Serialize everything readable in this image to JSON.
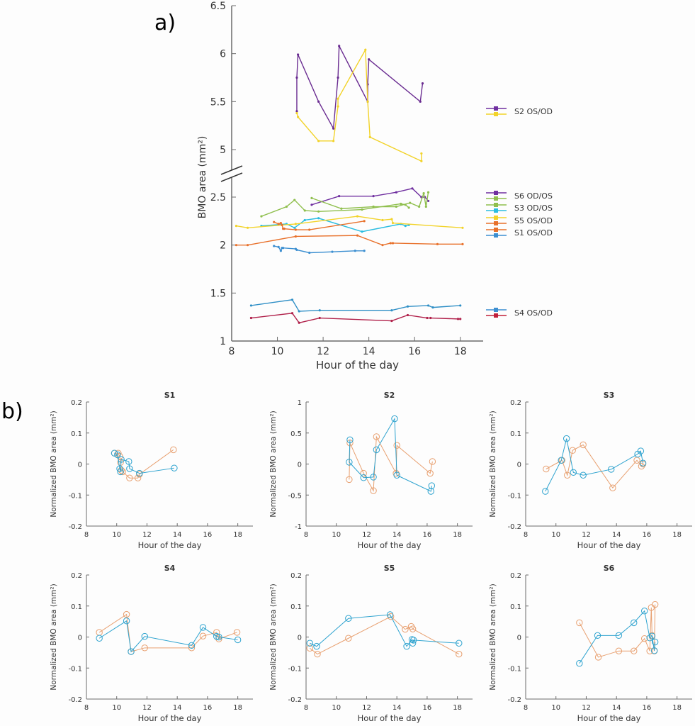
{
  "panel_labels": {
    "a": "a)",
    "b": "b)"
  },
  "chart_data": [
    {
      "id": "a",
      "type": "line",
      "title": "",
      "xlabel": "Hour of the day",
      "ylabel": "BMO area (mm²)",
      "xlim": [
        8,
        19
      ],
      "xticks": [
        8,
        10,
        12,
        14,
        16,
        18
      ],
      "ylim_lower": [
        1,
        2.75
      ],
      "ylim_upper": [
        4.8,
        6.5
      ],
      "yticks_lower": [
        1,
        1.5,
        2,
        2.5
      ],
      "yticks_upper": [
        5,
        5.5,
        6,
        6.5
      ],
      "axis_break": true,
      "legend_placement": "right",
      "legend": [
        {
          "label": "S2 OS/OD",
          "colors": [
            "#7030a0",
            "#f2d32a"
          ]
        },
        {
          "label": "S6 OD/OS",
          "colors": [
            "#7030a0",
            "#8fbf4d"
          ]
        },
        {
          "label": "S3 OD/OS",
          "colors": [
            "#8fbf4d",
            "#2bbde0"
          ]
        },
        {
          "label": "S5 OS/OD",
          "colors": [
            "#f2d32a",
            "#e8702a"
          ]
        },
        {
          "label": "S1 OS/OD",
          "colors": [
            "#e8702a",
            "#3c8fd1"
          ]
        },
        {
          "label": "S4 OS/OD",
          "colors": [
            "#3c8fd1",
            "#c0203a"
          ]
        }
      ],
      "series": [
        {
          "name": "S2 OS",
          "color": "#6a2c91",
          "x": [
            10.85,
            10.85,
            10.9,
            11.8,
            12.45,
            12.65,
            12.7,
            13.95,
            13.95,
            14.0,
            16.25,
            16.35
          ],
          "y": [
            5.4,
            5.75,
            5.99,
            5.5,
            5.22,
            5.75,
            6.08,
            5.5,
            5.68,
            5.94,
            5.5,
            5.69
          ]
        },
        {
          "name": "S2 OD",
          "color": "#f2d32a",
          "x": [
            10.85,
            10.9,
            11.8,
            12.45,
            12.65,
            12.65,
            13.85,
            13.95,
            14.05,
            16.3,
            16.3
          ],
          "y": [
            5.38,
            5.34,
            5.09,
            5.09,
            5.45,
            5.53,
            6.04,
            5.5,
            5.13,
            4.88,
            4.96
          ]
        },
        {
          "name": "S6 OD",
          "color": "#7030a0",
          "x": [
            11.5,
            12.7,
            14.2,
            15.2,
            15.9,
            16.3,
            16.45,
            16.6
          ],
          "y": [
            2.42,
            2.51,
            2.51,
            2.55,
            2.59,
            2.5,
            2.5,
            2.46
          ]
        },
        {
          "name": "S6 OS",
          "color": "#8fbf4d",
          "x": [
            11.5,
            12.8,
            14.2,
            15.2,
            15.8,
            16.2,
            16.4,
            16.5,
            16.6
          ],
          "y": [
            2.49,
            2.38,
            2.4,
            2.4,
            2.44,
            2.4,
            2.54,
            2.4,
            2.55
          ]
        },
        {
          "name": "S3 OD",
          "color": "#8fbf4d",
          "x": [
            9.3,
            10.4,
            10.75,
            11.2,
            11.8,
            13.7,
            15.4,
            15.6,
            15.75
          ],
          "y": [
            2.3,
            2.4,
            2.47,
            2.36,
            2.35,
            2.37,
            2.43,
            2.42,
            2.39
          ]
        },
        {
          "name": "S3 OS",
          "color": "#2bbde0",
          "x": [
            9.3,
            10.4,
            10.75,
            11.2,
            11.8,
            13.7,
            15.4,
            15.6,
            15.75
          ],
          "y": [
            2.2,
            2.22,
            2.18,
            2.26,
            2.28,
            2.14,
            2.22,
            2.2,
            2.21
          ]
        },
        {
          "name": "S5 OS",
          "color": "#f2d32a",
          "x": [
            8.2,
            8.7,
            10.8,
            13.5,
            14.6,
            15.0,
            15.05,
            18.1
          ],
          "y": [
            2.2,
            2.18,
            2.22,
            2.3,
            2.26,
            2.27,
            2.23,
            2.18
          ]
        },
        {
          "name": "S5 OD",
          "color": "#e8702a",
          "x": [
            8.2,
            8.7,
            10.8,
            13.5,
            14.6,
            14.95,
            15.05,
            17.0,
            18.1
          ],
          "y": [
            2.0,
            2.0,
            2.09,
            2.1,
            2.0,
            2.02,
            2.02,
            2.01,
            2.01
          ]
        },
        {
          "name": "S1 OS",
          "color": "#e8702a",
          "x": [
            9.85,
            10.05,
            10.15,
            10.2,
            10.25,
            10.3,
            10.8,
            11.4,
            13.8
          ],
          "y": [
            2.24,
            2.22,
            2.23,
            2.21,
            2.17,
            2.17,
            2.16,
            2.16,
            2.25
          ]
        },
        {
          "name": "S1 OD",
          "color": "#3c8fd1",
          "x": [
            9.85,
            10.05,
            10.15,
            10.2,
            10.25,
            10.8,
            10.85,
            11.4,
            12.4,
            13.4,
            13.8
          ],
          "y": [
            1.99,
            1.98,
            1.94,
            1.97,
            1.97,
            1.96,
            1.95,
            1.92,
            1.93,
            1.94,
            1.94
          ]
        },
        {
          "name": "S4 OS",
          "color": "#2f8fc6",
          "x": [
            8.85,
            10.65,
            10.95,
            11.85,
            15.0,
            15.7,
            16.6,
            16.8,
            18.0
          ],
          "y": [
            1.37,
            1.43,
            1.31,
            1.32,
            1.32,
            1.36,
            1.37,
            1.35,
            1.37
          ]
        },
        {
          "name": "S4 OD",
          "color": "#b0204a",
          "x": [
            8.85,
            10.65,
            10.95,
            11.85,
            15.0,
            15.7,
            16.55,
            16.7,
            17.9,
            18.0
          ],
          "y": [
            1.24,
            1.29,
            1.19,
            1.24,
            1.21,
            1.27,
            1.24,
            1.24,
            1.23,
            1.23
          ]
        }
      ]
    },
    {
      "id": "b-S1",
      "type": "line",
      "title": "S1",
      "xlabel": "Hour of the day",
      "ylabel": "Normalized BMO area (mm²)",
      "xlim": [
        8,
        19
      ],
      "xticks": [
        8,
        10,
        12,
        14,
        16,
        18
      ],
      "ylim": [
        -0.2,
        0.2
      ],
      "yticks": [
        -0.2,
        -0.1,
        0,
        0.1,
        0.2
      ],
      "series": [
        {
          "name": "OD",
          "color": "#2ea3cf",
          "x": [
            9.85,
            10.05,
            10.2,
            10.25,
            10.3,
            10.8,
            10.85,
            11.5,
            13.8
          ],
          "y": [
            0.035,
            0.03,
            -0.015,
            -0.025,
            0.015,
            0.008,
            -0.015,
            -0.03,
            -0.013
          ]
        },
        {
          "name": "OS",
          "color": "#e8a070",
          "x": [
            9.85,
            10.1,
            10.2,
            10.25,
            10.3,
            10.4,
            10.85,
            11.4,
            11.5,
            13.75
          ],
          "y": [
            0.035,
            0.035,
            0.025,
            0.005,
            -0.02,
            -0.025,
            -0.045,
            -0.045,
            -0.033,
            0.046
          ]
        }
      ]
    },
    {
      "id": "b-S2",
      "type": "line",
      "title": "S2",
      "xlabel": "Hour of the day",
      "ylabel": "Normalized BMO area (mm²)",
      "xlim": [
        8,
        19
      ],
      "xticks": [
        8,
        10,
        12,
        14,
        16,
        18
      ],
      "ylim": [
        -1,
        1
      ],
      "yticks": [
        -1,
        -0.5,
        0,
        0.5,
        1
      ],
      "series": [
        {
          "name": "OD",
          "color": "#2ea3cf",
          "x": [
            10.9,
            10.85,
            11.8,
            12.45,
            12.65,
            13.85,
            14.0,
            16.25,
            16.3
          ],
          "y": [
            0.39,
            0.03,
            -0.22,
            -0.21,
            0.23,
            0.73,
            -0.18,
            -0.44,
            -0.35
          ]
        },
        {
          "name": "OS",
          "color": "#e8a070",
          "x": [
            10.85,
            10.9,
            11.8,
            12.45,
            12.65,
            13.95,
            14.0,
            16.2,
            16.35
          ],
          "y": [
            -0.25,
            0.34,
            -0.15,
            -0.43,
            0.44,
            -0.15,
            0.3,
            -0.15,
            0.04
          ]
        }
      ]
    },
    {
      "id": "b-S3",
      "type": "line",
      "title": "S3",
      "xlabel": "Hour of the day",
      "ylabel": "Normalized BMO area (mm²)",
      "xlim": [
        8,
        19
      ],
      "xticks": [
        8,
        10,
        12,
        14,
        16,
        18
      ],
      "ylim": [
        -0.2,
        0.2
      ],
      "yticks": [
        -0.2,
        -0.1,
        0,
        0.1,
        0.2
      ],
      "series": [
        {
          "name": "OD",
          "color": "#2ea3cf",
          "x": [
            9.3,
            10.35,
            10.7,
            11.15,
            11.8,
            13.65,
            15.4,
            15.6,
            15.75
          ],
          "y": [
            -0.088,
            0.012,
            0.082,
            -0.027,
            -0.036,
            -0.017,
            0.032,
            0.042,
            0.003
          ]
        },
        {
          "name": "OS",
          "color": "#e8a070",
          "x": [
            9.35,
            10.4,
            10.75,
            11.1,
            11.8,
            13.75,
            15.35,
            15.65,
            15.75
          ],
          "y": [
            -0.016,
            0.012,
            -0.036,
            0.044,
            0.062,
            -0.077,
            0.012,
            -0.007,
            0.0
          ]
        }
      ]
    },
    {
      "id": "b-S4",
      "type": "line",
      "title": "S4",
      "xlabel": "Hour of the day",
      "ylabel": "Normalized BMO area (mm²)",
      "xlim": [
        8,
        19
      ],
      "xticks": [
        8,
        10,
        12,
        14,
        16,
        18
      ],
      "ylim": [
        -0.2,
        0.2
      ],
      "yticks": [
        -0.2,
        -0.1,
        0,
        0.1,
        0.2
      ],
      "series": [
        {
          "name": "OD",
          "color": "#2ea3cf",
          "x": [
            8.85,
            10.65,
            10.95,
            11.85,
            14.95,
            15.7,
            16.6,
            16.75,
            18.0
          ],
          "y": [
            -0.004,
            0.052,
            -0.047,
            0.002,
            -0.027,
            0.031,
            0.002,
            0.0,
            -0.009
          ]
        },
        {
          "name": "OS",
          "color": "#e8a070",
          "x": [
            8.85,
            10.65,
            10.95,
            11.85,
            14.95,
            15.7,
            16.6,
            16.75,
            17.95
          ],
          "y": [
            0.015,
            0.073,
            -0.047,
            -0.035,
            -0.035,
            0.003,
            0.015,
            -0.006,
            0.015
          ]
        }
      ]
    },
    {
      "id": "b-S5",
      "type": "line",
      "title": "S5",
      "xlabel": "Hour of the day",
      "ylabel": "Normalized BMO area (mm²)",
      "xlim": [
        8,
        19
      ],
      "xticks": [
        8,
        10,
        12,
        14,
        16,
        18
      ],
      "ylim": [
        -0.2,
        0.2
      ],
      "yticks": [
        -0.2,
        -0.1,
        0,
        0.1,
        0.2
      ],
      "series": [
        {
          "name": "OD",
          "color": "#2ea3cf",
          "x": [
            8.25,
            8.7,
            10.8,
            13.55,
            14.65,
            15.0,
            15.05,
            15.1,
            18.1
          ],
          "y": [
            -0.02,
            -0.03,
            0.06,
            0.072,
            -0.03,
            -0.008,
            -0.02,
            -0.01,
            -0.02
          ]
        },
        {
          "name": "OS",
          "color": "#e8a070",
          "x": [
            8.25,
            8.75,
            10.8,
            13.6,
            14.55,
            14.95,
            15.05,
            18.1
          ],
          "y": [
            -0.036,
            -0.055,
            -0.004,
            0.066,
            0.025,
            0.034,
            0.026,
            -0.055
          ]
        }
      ]
    },
    {
      "id": "b-S6",
      "type": "line",
      "title": "S6",
      "xlabel": "Hour of the day",
      "ylabel": "Normalized BMO area (mm²)",
      "xlim": [
        8,
        19
      ],
      "xticks": [
        8,
        10,
        12,
        14,
        16,
        18
      ],
      "ylim": [
        -0.2,
        0.2
      ],
      "yticks": [
        -0.2,
        -0.1,
        0,
        0.1,
        0.2
      ],
      "series": [
        {
          "name": "OD",
          "color": "#2ea3cf",
          "x": [
            11.55,
            12.75,
            14.15,
            15.15,
            15.85,
            16.2,
            16.35,
            16.5,
            16.55
          ],
          "y": [
            -0.085,
            0.005,
            0.005,
            0.046,
            0.084,
            -0.003,
            0.003,
            -0.044,
            -0.016
          ]
        },
        {
          "name": "OS",
          "color": "#e8a070",
          "x": [
            11.55,
            12.8,
            14.15,
            15.15,
            15.85,
            16.2,
            16.3,
            16.35,
            16.5,
            16.55
          ],
          "y": [
            0.046,
            -0.065,
            -0.045,
            -0.045,
            -0.005,
            -0.045,
            0.095,
            0.005,
            -0.045,
            0.105
          ]
        }
      ]
    }
  ]
}
